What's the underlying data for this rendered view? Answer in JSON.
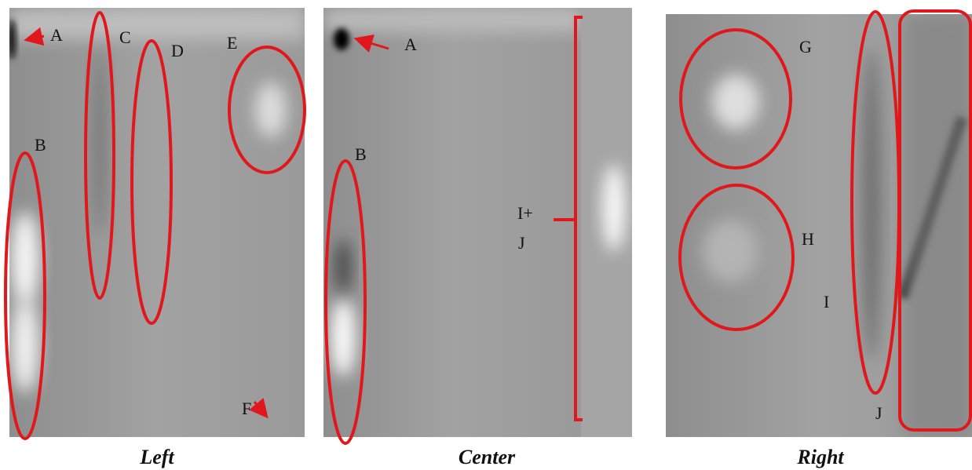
{
  "panels": [
    {
      "caption": "Left",
      "labels": [
        "A",
        "B",
        "C",
        "D",
        "E",
        "F"
      ]
    },
    {
      "caption": "Center",
      "labels": [
        "A",
        "B",
        "I+",
        "J"
      ]
    },
    {
      "caption": "Right",
      "labels": [
        "G",
        "H",
        "I",
        "J"
      ]
    }
  ]
}
